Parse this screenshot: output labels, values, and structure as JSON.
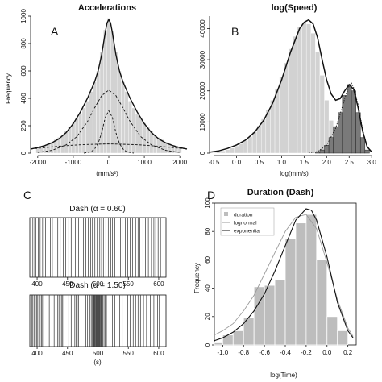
{
  "chart_data": [
    {
      "panel": "A",
      "type": "bar",
      "title": "Accelerations",
      "xlabel": "(mm/s²)",
      "ylabel": "Frequency",
      "xlim": [
        -2200,
        2200
      ],
      "ylim": [
        0,
        1000
      ],
      "xticks": [
        -2000,
        -1000,
        0,
        1000,
        2000
      ],
      "yticks": [
        0,
        200,
        400,
        600,
        800,
        1000
      ],
      "hist": {
        "x": [
          -2000,
          -1900,
          -1800,
          -1700,
          -1600,
          -1500,
          -1400,
          -1300,
          -1200,
          -1100,
          -1000,
          -900,
          -800,
          -700,
          -600,
          -500,
          -400,
          -300,
          -200,
          -100,
          0,
          100,
          200,
          300,
          400,
          500,
          600,
          700,
          800,
          900,
          1000,
          1100,
          1200,
          1300,
          1400,
          1500,
          1600,
          1700,
          1800,
          1900,
          2000
        ],
        "values": [
          40,
          48,
          58,
          70,
          82,
          98,
          115,
          135,
          160,
          190,
          220,
          255,
          290,
          330,
          380,
          450,
          520,
          600,
          740,
          900,
          985,
          890,
          740,
          600,
          520,
          450,
          380,
          330,
          290,
          255,
          220,
          190,
          160,
          135,
          115,
          98,
          82,
          70,
          58,
          48,
          40
        ]
      },
      "curves": [
        {
          "name": "mixture",
          "style": "solid",
          "x": [
            -2200,
            -2000,
            -1800,
            -1600,
            -1400,
            -1200,
            -1000,
            -800,
            -600,
            -400,
            -300,
            -200,
            -100,
            -50,
            0,
            50,
            100,
            200,
            300,
            400,
            600,
            800,
            1000,
            1200,
            1400,
            1600,
            1800,
            2000,
            2200
          ],
          "y": [
            30,
            40,
            55,
            75,
            105,
            150,
            215,
            300,
            400,
            520,
            600,
            720,
            880,
            950,
            975,
            950,
            880,
            720,
            600,
            520,
            400,
            300,
            215,
            150,
            105,
            75,
            55,
            40,
            30
          ]
        },
        {
          "name": "component 1",
          "style": "dashed",
          "x": [
            -2200,
            -1800,
            -1400,
            -1000,
            -600,
            -200,
            0,
            200,
            600,
            1000,
            1400,
            1800,
            2200
          ],
          "y": [
            30,
            40,
            50,
            58,
            63,
            66,
            67,
            66,
            63,
            58,
            50,
            40,
            30
          ]
        },
        {
          "name": "component 2",
          "style": "dashed",
          "x": [
            -2000,
            -1600,
            -1200,
            -900,
            -600,
            -400,
            -200,
            0,
            200,
            400,
            600,
            900,
            1200,
            1600,
            2000
          ],
          "y": [
            5,
            20,
            60,
            120,
            230,
            330,
            420,
            460,
            420,
            330,
            230,
            120,
            60,
            20,
            5
          ]
        },
        {
          "name": "component 3",
          "style": "dashed",
          "x": [
            -700,
            -500,
            -400,
            -300,
            -200,
            -100,
            0,
            100,
            200,
            300,
            400,
            500,
            700
          ],
          "y": [
            0,
            10,
            30,
            70,
            150,
            260,
            310,
            260,
            150,
            70,
            30,
            10,
            0
          ]
        }
      ]
    },
    {
      "panel": "B",
      "type": "bar",
      "title": "log(Speed)",
      "xlabel": "log(mm/s)",
      "ylabel": "",
      "xlim": [
        -0.6,
        3.05
      ],
      "ylim": [
        0,
        44000
      ],
      "xticks": [
        -0.5,
        0.0,
        0.5,
        1.0,
        1.5,
        2.0,
        2.5,
        3.0
      ],
      "yticks": [
        0,
        10000,
        20000,
        30000,
        40000
      ],
      "hist_light": {
        "x": [
          -0.5,
          -0.4,
          -0.3,
          -0.2,
          -0.1,
          0.0,
          0.1,
          0.2,
          0.3,
          0.4,
          0.5,
          0.6,
          0.7,
          0.8,
          0.9,
          1.0,
          1.1,
          1.2,
          1.3,
          1.4,
          1.5,
          1.6,
          1.7,
          1.8,
          1.9,
          2.0,
          2.1,
          2.2,
          2.3,
          2.4,
          2.5
        ],
        "values": [
          200,
          400,
          700,
          1100,
          1600,
          2300,
          3000,
          4000,
          5200,
          6800,
          8800,
          11000,
          13800,
          17000,
          20500,
          24500,
          29000,
          33500,
          37500,
          40500,
          42000,
          41500,
          38500,
          32500,
          25000,
          17000,
          10500,
          5500,
          2500,
          1000,
          300
        ]
      },
      "hist_dark": {
        "x": [
          1.8,
          1.9,
          2.0,
          2.1,
          2.2,
          2.3,
          2.4,
          2.5,
          2.6,
          2.7,
          2.8,
          2.9
        ],
        "values": [
          300,
          1000,
          2500,
          5000,
          8500,
          13000,
          18500,
          22000,
          20000,
          13000,
          5000,
          1000
        ]
      },
      "curves": [
        {
          "name": "total",
          "style": "solid",
          "x": [
            -0.6,
            -0.4,
            -0.2,
            0.0,
            0.2,
            0.4,
            0.6,
            0.8,
            1.0,
            1.2,
            1.4,
            1.5,
            1.6,
            1.7,
            1.8,
            1.9,
            2.0,
            2.1,
            2.2,
            2.3,
            2.4,
            2.5,
            2.6,
            2.7,
            2.8,
            2.9,
            3.0
          ],
          "y": [
            300,
            700,
            1500,
            2600,
            4200,
            6700,
            10500,
            16000,
            23500,
            32500,
            40000,
            42000,
            42800,
            41500,
            37000,
            30000,
            23500,
            19000,
            17000,
            17500,
            20000,
            22000,
            20500,
            14500,
            7000,
            2000,
            400
          ]
        },
        {
          "name": "fast component",
          "style": "dotted",
          "x": [
            1.6,
            1.8,
            2.0,
            2.2,
            2.3,
            2.4,
            2.5,
            2.55,
            2.6,
            2.7,
            2.8,
            2.9,
            3.0
          ],
          "y": [
            100,
            500,
            2500,
            8000,
            12500,
            17500,
            21500,
            22500,
            21000,
            15500,
            7500,
            2200,
            400
          ]
        }
      ]
    },
    {
      "panel": "C",
      "type": "raster",
      "rows": [
        {
          "title": "Dash (α = 0.60)",
          "events": [
            393,
            396,
            398,
            402,
            405,
            409,
            414,
            418,
            422,
            425,
            431,
            434,
            438,
            443,
            447,
            452,
            456,
            459,
            463,
            468,
            472,
            476,
            480,
            484,
            488,
            491,
            495,
            499,
            503,
            506,
            509,
            513,
            517,
            521,
            524,
            528,
            533,
            537,
            540,
            545,
            549,
            553,
            557,
            562,
            566,
            569,
            574,
            578,
            583,
            588,
            592,
            595,
            599,
            603
          ]
        },
        {
          "title": "Dash (α = 1.50)",
          "events": [
            391,
            393,
            395,
            397,
            399,
            401,
            403,
            405,
            407,
            409,
            420,
            428,
            434,
            436,
            438,
            440,
            442,
            444,
            452,
            456,
            459,
            462,
            464,
            466,
            468,
            480,
            483,
            487,
            489,
            491,
            493,
            494,
            495,
            496,
            497,
            498,
            499,
            500,
            501,
            502,
            503,
            504,
            505,
            506,
            507,
            508,
            510,
            512,
            514,
            520,
            524,
            528,
            533,
            536,
            540,
            549,
            553,
            558,
            562,
            566,
            570,
            575,
            580,
            586,
            592,
            598,
            601
          ]
        }
      ],
      "xlim": [
        388,
        612
      ],
      "xticks": [
        400,
        450,
        500,
        550,
        600
      ],
      "xlabel": "(s)"
    },
    {
      "panel": "D",
      "type": "bar",
      "title": "Duration (Dash)",
      "xlabel": "log(Time)",
      "ylabel": "Frequency",
      "xlim": [
        -1.08,
        0.28
      ],
      "ylim": [
        0,
        100
      ],
      "xticks": [
        -1.0,
        -0.8,
        -0.6,
        -0.4,
        -0.2,
        0.0,
        0.2
      ],
      "yticks": [
        0,
        20,
        40,
        60,
        80,
        100
      ],
      "hist": {
        "edges": [
          -1.1,
          -1.0,
          -0.9,
          -0.8,
          -0.7,
          -0.6,
          -0.5,
          -0.4,
          -0.3,
          -0.2,
          -0.1,
          0.0,
          0.1,
          0.2
        ],
        "values": [
          2,
          7,
          10,
          19,
          41,
          42,
          46,
          75,
          86,
          92,
          60,
          20,
          10
        ]
      },
      "legend": [
        "duration",
        "lognormal",
        "exponential"
      ],
      "legend_position": "top-left",
      "curves": [
        {
          "name": "lognormal",
          "style": "light",
          "x": [
            -1.1,
            -1.0,
            -0.9,
            -0.8,
            -0.7,
            -0.6,
            -0.5,
            -0.4,
            -0.3,
            -0.2,
            -0.1,
            0.0,
            0.1,
            0.2,
            0.25
          ],
          "y": [
            7,
            10,
            15,
            24,
            35,
            50,
            65,
            80,
            90,
            92,
            82,
            58,
            32,
            12,
            6
          ]
        },
        {
          "name": "exponential",
          "style": "solid",
          "x": [
            -1.1,
            -1.0,
            -0.9,
            -0.8,
            -0.7,
            -0.6,
            -0.5,
            -0.4,
            -0.3,
            -0.2,
            -0.15,
            -0.1,
            0.0,
            0.1,
            0.2,
            0.25
          ],
          "y": [
            3,
            5,
            9,
            15,
            24,
            36,
            52,
            70,
            88,
            96,
            95,
            88,
            62,
            30,
            10,
            5
          ]
        }
      ]
    }
  ],
  "panel_labels": [
    "A",
    "B",
    "C",
    "D"
  ],
  "colors": {
    "hist_light": "#d2d2d2",
    "hist_dark": "#7a7a7a",
    "hist_D": "#bdbdbd",
    "line": "#111111",
    "lognormal_line": "#9a9a9a"
  }
}
